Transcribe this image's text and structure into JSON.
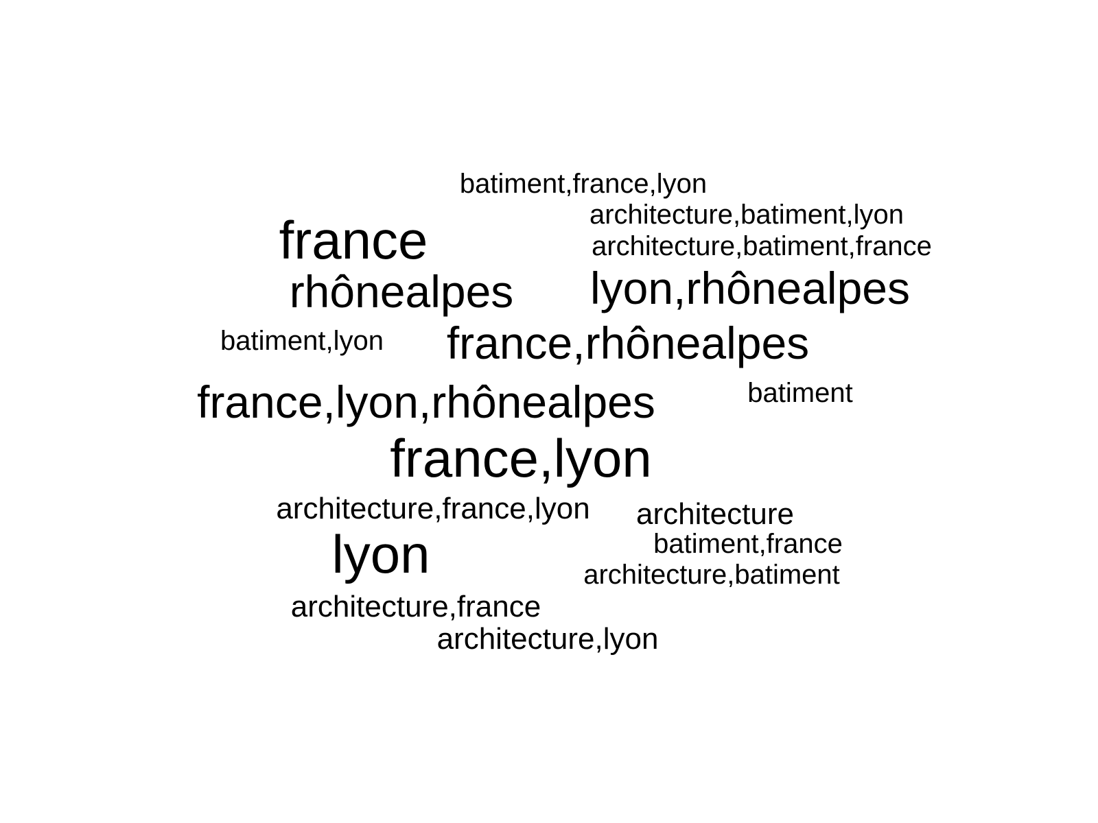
{
  "title": "",
  "text_color": "#000000",
  "background_color": "#ffffff",
  "words": [
    {
      "text": "batiment,france,lyon"
    },
    {
      "text": "architecture,batiment,lyon"
    },
    {
      "text": "architecture,batiment,france"
    },
    {
      "text": "france"
    },
    {
      "text": "rhônealpes"
    },
    {
      "text": "lyon,rhônealpes"
    },
    {
      "text": "batiment,lyon"
    },
    {
      "text": "france,rhônealpes"
    },
    {
      "text": "batiment"
    },
    {
      "text": "france,lyon,rhônealpes"
    },
    {
      "text": "france,lyon"
    },
    {
      "text": "architecture,france,lyon"
    },
    {
      "text": "architecture"
    },
    {
      "text": "batiment,france"
    },
    {
      "text": "lyon"
    },
    {
      "text": "architecture,batiment"
    },
    {
      "text": "architecture,france"
    },
    {
      "text": "architecture,lyon"
    }
  ]
}
